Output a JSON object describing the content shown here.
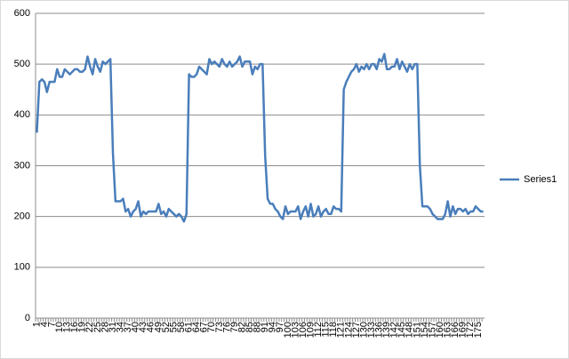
{
  "chart_data": {
    "type": "line",
    "categories": [
      1,
      null,
      null,
      4,
      null,
      null,
      7,
      null,
      null,
      10,
      null,
      null,
      13,
      null,
      null,
      16,
      null,
      null,
      19,
      null,
      null,
      22,
      null,
      null,
      25,
      null,
      null,
      28,
      null,
      null,
      31,
      null,
      null,
      34,
      null,
      null,
      37,
      null,
      null,
      40,
      null,
      null,
      43,
      null,
      null,
      46,
      null,
      null,
      49,
      null,
      null,
      52,
      null,
      null,
      55,
      null,
      null,
      58,
      null,
      null,
      61,
      null,
      null,
      64,
      null,
      null,
      67,
      null,
      null,
      70,
      null,
      null,
      73,
      null,
      null,
      76,
      null,
      null,
      79,
      null,
      null,
      82,
      null,
      null,
      85,
      null,
      null,
      88,
      null,
      null,
      91,
      null,
      null,
      94,
      null,
      null,
      97,
      null,
      null,
      100,
      null,
      null,
      103,
      null,
      null,
      106,
      null,
      null,
      109,
      null,
      null,
      112,
      null,
      null,
      115,
      null,
      null,
      118,
      null,
      null,
      121,
      null,
      null,
      124,
      null,
      null,
      127,
      null,
      null,
      130,
      null,
      null,
      133,
      null,
      null,
      136,
      null,
      null,
      139,
      null,
      null,
      142,
      null,
      null,
      145,
      null,
      null,
      148,
      null,
      null,
      151,
      null,
      null,
      154,
      null,
      null,
      157,
      null,
      null,
      160,
      null,
      null,
      163,
      null,
      null,
      166,
      null,
      null,
      169,
      null,
      null,
      172,
      null,
      null,
      175,
      null,
      null
    ],
    "series": [
      {
        "name": "Series1",
        "color": "#4a7ebb",
        "values": [
          365,
          465,
          470,
          465,
          445,
          465,
          465,
          465,
          490,
          475,
          475,
          490,
          485,
          480,
          485,
          490,
          490,
          485,
          485,
          490,
          515,
          495,
          480,
          510,
          495,
          485,
          505,
          500,
          505,
          510,
          325,
          230,
          230,
          230,
          235,
          210,
          215,
          200,
          210,
          215,
          230,
          200,
          210,
          205,
          210,
          210,
          210,
          210,
          225,
          205,
          210,
          200,
          215,
          210,
          205,
          200,
          205,
          200,
          190,
          205,
          480,
          475,
          475,
          480,
          495,
          490,
          485,
          480,
          510,
          500,
          505,
          500,
          495,
          510,
          500,
          495,
          505,
          495,
          500,
          505,
          515,
          495,
          505,
          505,
          505,
          480,
          495,
          490,
          500,
          500,
          320,
          235,
          225,
          225,
          215,
          210,
          200,
          195,
          220,
          205,
          210,
          210,
          210,
          220,
          195,
          210,
          220,
          200,
          225,
          200,
          205,
          220,
          200,
          210,
          215,
          205,
          205,
          220,
          215,
          215,
          210,
          450,
          465,
          475,
          485,
          490,
          500,
          485,
          495,
          490,
          500,
          490,
          500,
          500,
          490,
          510,
          505,
          520,
          490,
          490,
          495,
          495,
          510,
          490,
          505,
          495,
          485,
          500,
          490,
          500,
          500,
          300,
          220,
          220,
          220,
          215,
          205,
          200,
          195,
          195,
          195,
          205,
          230,
          200,
          220,
          205,
          215,
          215,
          210,
          215,
          205,
          210,
          210,
          220,
          215,
          210,
          210
        ]
      }
    ],
    "ylim": [
      0,
      600
    ],
    "yticks": [
      0,
      100,
      200,
      300,
      400,
      500,
      600
    ],
    "grid": true,
    "legend": "right"
  }
}
